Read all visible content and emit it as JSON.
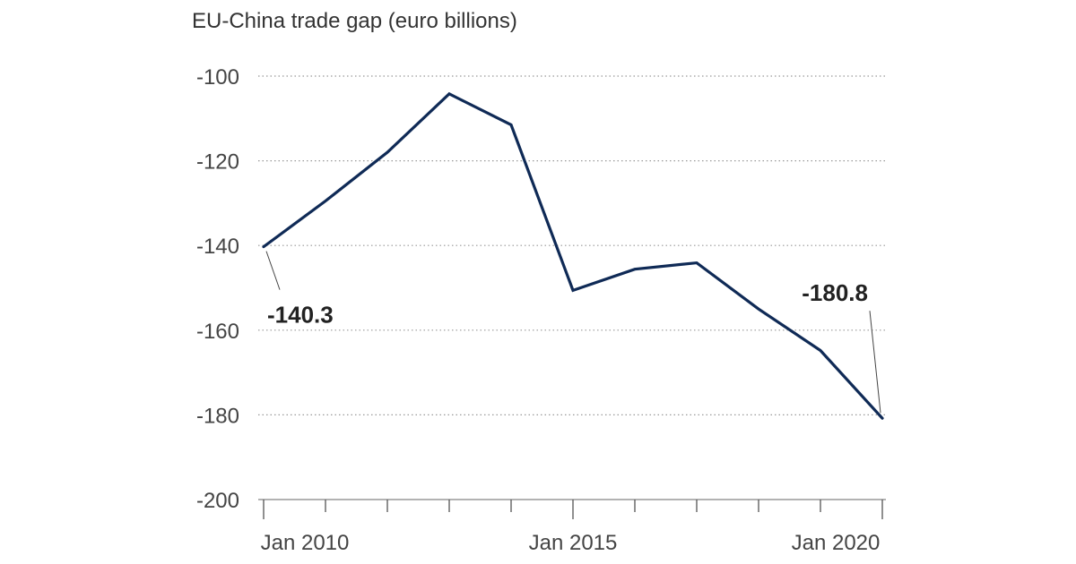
{
  "chart_data": {
    "type": "line",
    "title": "",
    "subtitle": "EU-China trade gap (euro billions)",
    "xlabel": "",
    "ylabel": "",
    "x": [
      2010,
      2011,
      2012,
      2013,
      2014,
      2015,
      2016,
      2017,
      2018,
      2019,
      2020
    ],
    "series": [
      {
        "name": "",
        "values": [
          -140.3,
          -129.5,
          -118,
          -104.2,
          -111.5,
          -150.6,
          -145.6,
          -144.1,
          -155,
          -164.8,
          -180.8
        ],
        "color": "#0f2a56"
      }
    ],
    "ylim": [
      -200,
      -100
    ],
    "yticks": [
      -100,
      -120,
      -140,
      -160,
      -180,
      -200
    ],
    "ytick_labels": [
      "-100",
      "-120",
      "-140",
      "-160",
      "-180",
      "-200"
    ],
    "xlim": [
      2010,
      2020
    ],
    "xticks": [
      2010,
      2011,
      2012,
      2013,
      2014,
      2015,
      2016,
      2017,
      2018,
      2019,
      2020
    ],
    "xtick_labels": [
      "Jan 2010",
      "Jan 2015",
      "Jan 2020"
    ],
    "xtick_label_years": [
      2010,
      2015,
      2020
    ],
    "annotations": [
      {
        "text": "-140.3",
        "x": 2010,
        "y": -140.3
      },
      {
        "text": "-180.8",
        "x": 2020,
        "y": -180.8
      }
    ],
    "grid": {
      "horizontal": true,
      "style": "dotted",
      "color": "#999999"
    },
    "legend": "none"
  }
}
